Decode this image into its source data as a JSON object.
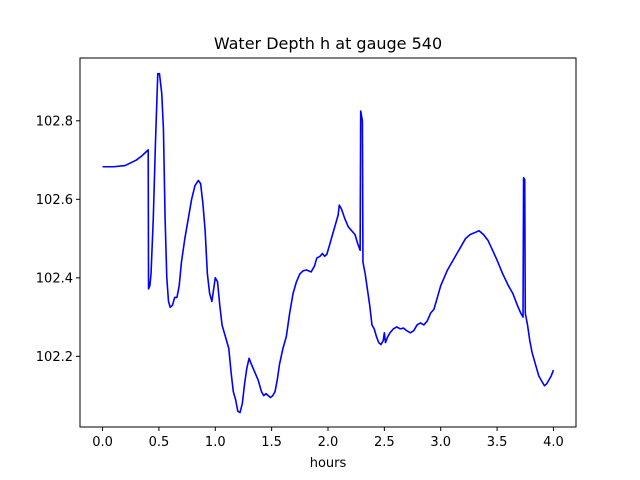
{
  "chart_data": {
    "type": "line",
    "title": "Water Depth h at gauge 540",
    "xlabel": "hours",
    "ylabel": "",
    "xlim": [
      -0.2,
      4.2
    ],
    "ylim": [
      102.02,
      102.96
    ],
    "x_ticks": [
      0.0,
      0.5,
      1.0,
      1.5,
      2.0,
      2.5,
      3.0,
      3.5,
      4.0
    ],
    "x_tick_labels": [
      "0.0",
      "0.5",
      "1.0",
      "1.5",
      "2.0",
      "2.5",
      "3.0",
      "3.5",
      "4.0"
    ],
    "y_ticks": [
      102.2,
      102.4,
      102.6,
      102.8
    ],
    "y_tick_labels": [
      "102.2",
      "102.4",
      "102.6",
      "102.8"
    ],
    "grid": false,
    "series": [
      {
        "color": "#0000ff",
        "points": [
          [
            0.0,
            102.683
          ],
          [
            0.1,
            102.683
          ],
          [
            0.2,
            102.686
          ],
          [
            0.3,
            102.7
          ],
          [
            0.35,
            102.711
          ],
          [
            0.405,
            102.726
          ],
          [
            0.408,
            102.372
          ],
          [
            0.42,
            102.38
          ],
          [
            0.43,
            102.41
          ],
          [
            0.45,
            102.55
          ],
          [
            0.47,
            102.75
          ],
          [
            0.49,
            102.92
          ],
          [
            0.505,
            102.92
          ],
          [
            0.525,
            102.87
          ],
          [
            0.54,
            102.78
          ],
          [
            0.555,
            102.55
          ],
          [
            0.57,
            102.4
          ],
          [
            0.585,
            102.34
          ],
          [
            0.6,
            102.325
          ],
          [
            0.62,
            102.33
          ],
          [
            0.64,
            102.35
          ],
          [
            0.66,
            102.35
          ],
          [
            0.68,
            102.38
          ],
          [
            0.7,
            102.44
          ],
          [
            0.73,
            102.5
          ],
          [
            0.76,
            102.55
          ],
          [
            0.79,
            102.6
          ],
          [
            0.82,
            102.635
          ],
          [
            0.85,
            102.648
          ],
          [
            0.87,
            102.64
          ],
          [
            0.89,
            102.59
          ],
          [
            0.91,
            102.52
          ],
          [
            0.93,
            102.41
          ],
          [
            0.95,
            102.36
          ],
          [
            0.97,
            102.34
          ],
          [
            0.985,
            102.37
          ],
          [
            1.0,
            102.4
          ],
          [
            1.02,
            102.39
          ],
          [
            1.04,
            102.33
          ],
          [
            1.06,
            102.28
          ],
          [
            1.08,
            102.26
          ],
          [
            1.1,
            102.24
          ],
          [
            1.12,
            102.22
          ],
          [
            1.14,
            102.16
          ],
          [
            1.16,
            102.11
          ],
          [
            1.18,
            102.09
          ],
          [
            1.2,
            102.06
          ],
          [
            1.22,
            102.057
          ],
          [
            1.24,
            102.08
          ],
          [
            1.26,
            102.13
          ],
          [
            1.28,
            102.17
          ],
          [
            1.3,
            102.195
          ],
          [
            1.32,
            102.18
          ],
          [
            1.35,
            102.16
          ],
          [
            1.38,
            102.14
          ],
          [
            1.41,
            102.11
          ],
          [
            1.43,
            102.1
          ],
          [
            1.45,
            102.105
          ],
          [
            1.47,
            102.1
          ],
          [
            1.49,
            102.095
          ],
          [
            1.51,
            102.1
          ],
          [
            1.53,
            102.11
          ],
          [
            1.55,
            102.14
          ],
          [
            1.57,
            102.18
          ],
          [
            1.6,
            102.22
          ],
          [
            1.63,
            102.25
          ],
          [
            1.66,
            102.31
          ],
          [
            1.69,
            102.36
          ],
          [
            1.72,
            102.39
          ],
          [
            1.75,
            102.41
          ],
          [
            1.78,
            102.418
          ],
          [
            1.81,
            102.42
          ],
          [
            1.85,
            102.415
          ],
          [
            1.88,
            102.43
          ],
          [
            1.9,
            102.45
          ],
          [
            1.93,
            102.455
          ],
          [
            1.95,
            102.462
          ],
          [
            1.97,
            102.455
          ],
          [
            1.99,
            102.46
          ],
          [
            2.01,
            102.48
          ],
          [
            2.04,
            102.51
          ],
          [
            2.07,
            102.54
          ],
          [
            2.09,
            102.56
          ],
          [
            2.1,
            102.585
          ],
          [
            2.12,
            102.575
          ],
          [
            2.15,
            102.55
          ],
          [
            2.18,
            102.53
          ],
          [
            2.21,
            102.52
          ],
          [
            2.24,
            102.51
          ],
          [
            2.26,
            102.49
          ],
          [
            2.285,
            102.47
          ],
          [
            2.29,
            102.825
          ],
          [
            2.305,
            102.8
          ],
          [
            2.31,
            102.44
          ],
          [
            2.33,
            102.41
          ],
          [
            2.35,
            102.37
          ],
          [
            2.37,
            102.33
          ],
          [
            2.39,
            102.28
          ],
          [
            2.41,
            102.27
          ],
          [
            2.43,
            102.25
          ],
          [
            2.45,
            102.235
          ],
          [
            2.47,
            102.23
          ],
          [
            2.49,
            102.24
          ],
          [
            2.5,
            102.26
          ],
          [
            2.51,
            102.235
          ],
          [
            2.53,
            102.25
          ],
          [
            2.55,
            102.26
          ],
          [
            2.58,
            102.27
          ],
          [
            2.61,
            102.275
          ],
          [
            2.64,
            102.27
          ],
          [
            2.67,
            102.272
          ],
          [
            2.7,
            102.265
          ],
          [
            2.73,
            102.26
          ],
          [
            2.76,
            102.265
          ],
          [
            2.79,
            102.28
          ],
          [
            2.82,
            102.285
          ],
          [
            2.85,
            102.28
          ],
          [
            2.88,
            102.29
          ],
          [
            2.91,
            102.31
          ],
          [
            2.94,
            102.32
          ],
          [
            2.97,
            102.35
          ],
          [
            3.0,
            102.38
          ],
          [
            3.03,
            102.4
          ],
          [
            3.06,
            102.42
          ],
          [
            3.1,
            102.44
          ],
          [
            3.14,
            102.46
          ],
          [
            3.18,
            102.48
          ],
          [
            3.22,
            102.5
          ],
          [
            3.26,
            102.51
          ],
          [
            3.3,
            102.515
          ],
          [
            3.34,
            102.52
          ],
          [
            3.38,
            102.51
          ],
          [
            3.42,
            102.495
          ],
          [
            3.46,
            102.47
          ],
          [
            3.5,
            102.445
          ],
          [
            3.55,
            102.41
          ],
          [
            3.6,
            102.38
          ],
          [
            3.64,
            102.36
          ],
          [
            3.68,
            102.33
          ],
          [
            3.71,
            102.31
          ],
          [
            3.73,
            102.3
          ],
          [
            3.735,
            102.655
          ],
          [
            3.745,
            102.65
          ],
          [
            3.75,
            102.31
          ],
          [
            3.77,
            102.28
          ],
          [
            3.79,
            102.24
          ],
          [
            3.81,
            102.21
          ],
          [
            3.84,
            102.18
          ],
          [
            3.87,
            102.15
          ],
          [
            3.9,
            102.135
          ],
          [
            3.92,
            102.125
          ],
          [
            3.94,
            102.13
          ],
          [
            3.96,
            102.14
          ],
          [
            3.98,
            102.15
          ],
          [
            4.0,
            102.165
          ]
        ]
      }
    ]
  }
}
